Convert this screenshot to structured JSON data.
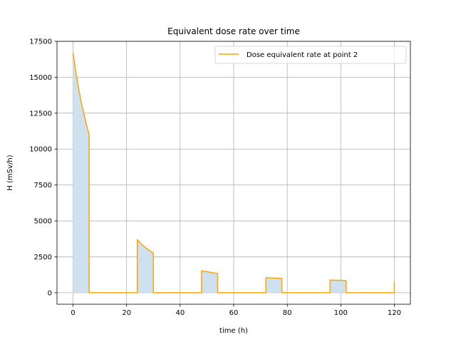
{
  "chart_data": {
    "type": "line",
    "title": "Equivalent dose rate over time",
    "xlabel": "time (h)",
    "ylabel": "H (mSv/h)",
    "xlim": [
      -6,
      126
    ],
    "ylim": [
      -800,
      17500
    ],
    "xticks": [
      0,
      20,
      40,
      60,
      80,
      100,
      120
    ],
    "yticks": [
      0,
      2500,
      5000,
      7500,
      10000,
      12500,
      15000,
      17500
    ],
    "grid": true,
    "legend_position": "top-right",
    "fill_under": true,
    "colors": {
      "line": "#ffa500",
      "fill": "#cfe1ee",
      "grid": "#b0b0b0"
    },
    "series": [
      {
        "name": "Dose equivalent rate at point 2",
        "x": [
          0,
          1,
          2,
          3,
          4,
          5,
          6,
          6,
          24,
          24,
          25,
          26,
          27,
          28,
          29,
          30,
          30,
          48,
          48,
          54,
          54,
          72,
          72,
          78,
          78,
          96,
          96,
          102,
          102,
          120,
          120
        ],
        "y": [
          16700,
          15400,
          14300,
          13300,
          12500,
          11700,
          11000,
          0,
          0,
          3700,
          3500,
          3300,
          3150,
          3000,
          2880,
          2750,
          0,
          0,
          1530,
          1330,
          0,
          0,
          1050,
          1000,
          0,
          0,
          880,
          850,
          0,
          0,
          750
        ]
      }
    ]
  }
}
